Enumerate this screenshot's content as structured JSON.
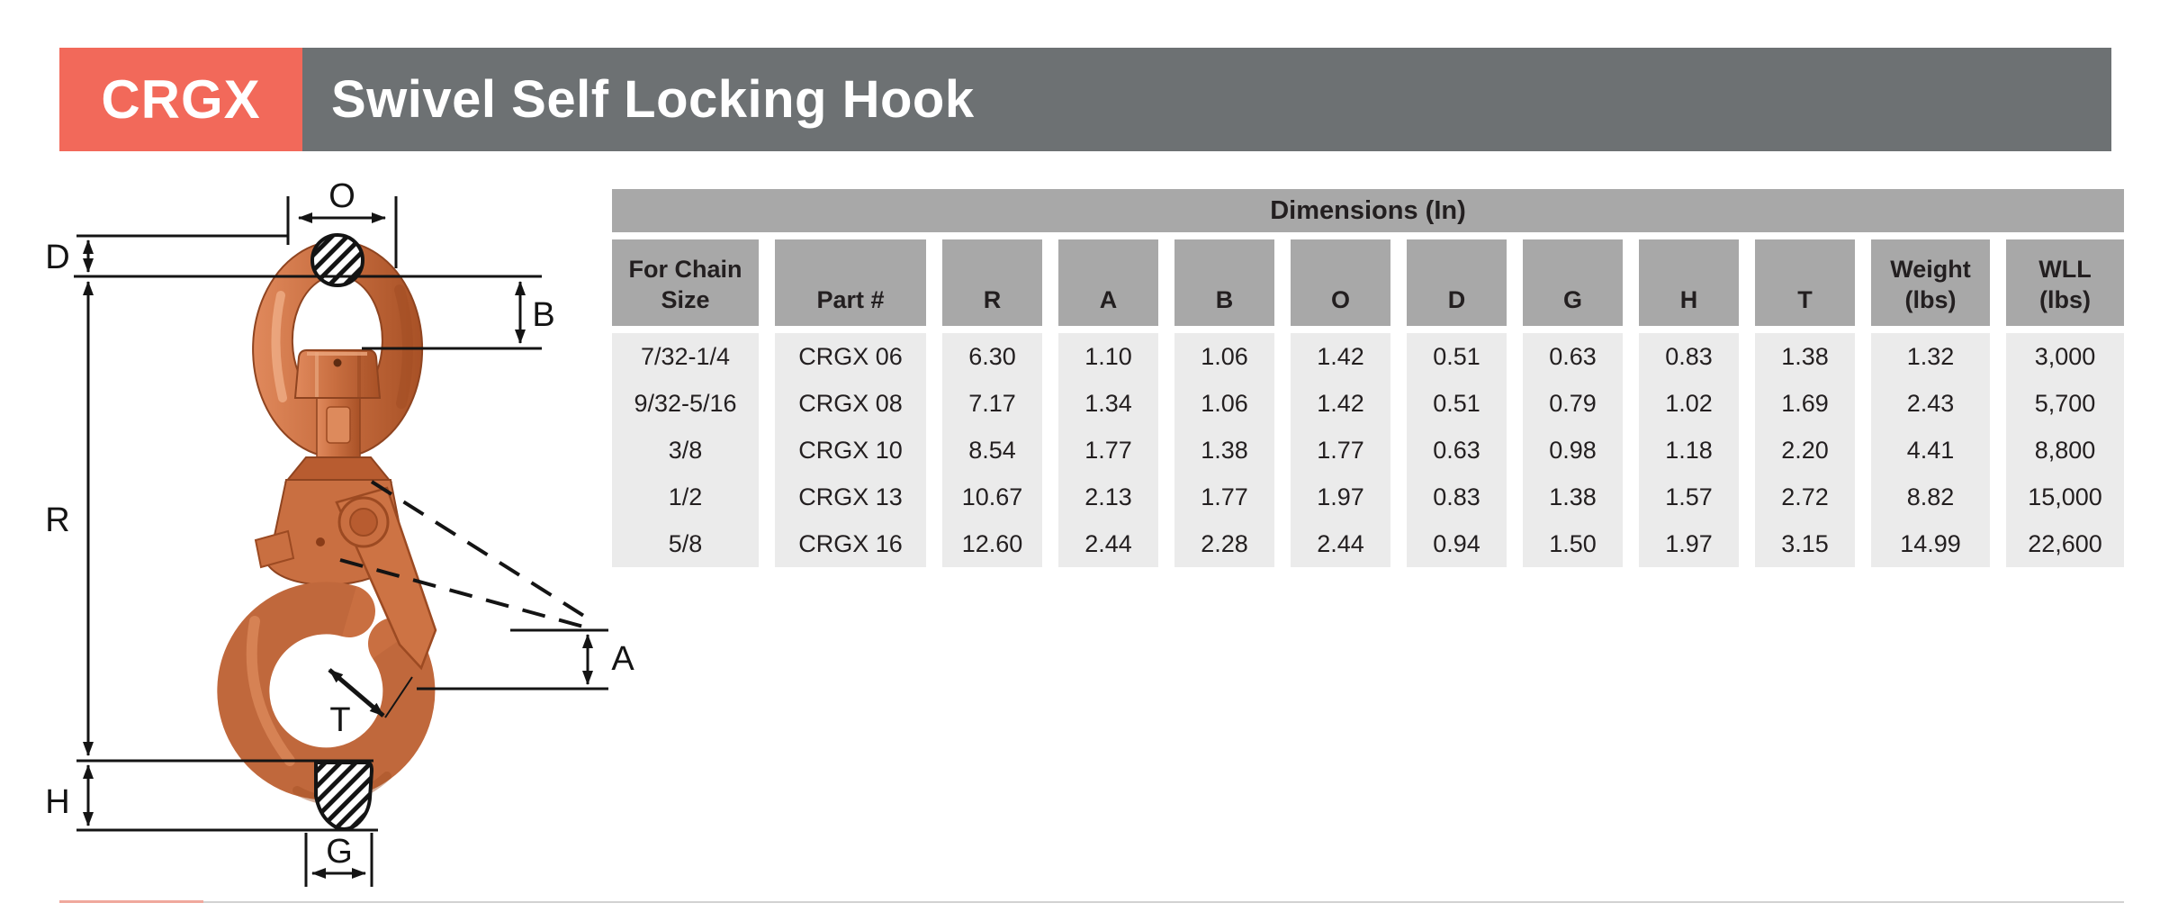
{
  "header": {
    "product_code": "CRGX",
    "title": "Swivel Self Locking Hook"
  },
  "diagram": {
    "labels": {
      "O": "O",
      "D": "D",
      "B": "B",
      "R": "R",
      "T": "T",
      "A": "A",
      "H": "H",
      "G": "G"
    },
    "description": "swivel-self-locking-hook-dimension-drawing"
  },
  "table": {
    "title": "Dimensions (In)",
    "columns": [
      "For Chain\nSize",
      "Part #",
      "R",
      "A",
      "B",
      "O",
      "D",
      "G",
      "H",
      "T",
      "Weight\n(lbs)",
      "WLL\n(lbs)"
    ],
    "rows": [
      [
        "7/32-1/4",
        "CRGX 06",
        "6.30",
        "1.10",
        "1.06",
        "1.42",
        "0.51",
        "0.63",
        "0.83",
        "1.38",
        "1.32",
        "3,000"
      ],
      [
        "9/32-5/16",
        "CRGX 08",
        "7.17",
        "1.34",
        "1.06",
        "1.42",
        "0.51",
        "0.79",
        "1.02",
        "1.69",
        "2.43",
        "5,700"
      ],
      [
        "3/8",
        "CRGX 10",
        "8.54",
        "1.77",
        "1.38",
        "1.77",
        "0.63",
        "0.98",
        "1.18",
        "2.20",
        "4.41",
        "8,800"
      ],
      [
        "1/2",
        "CRGX 13",
        "10.67",
        "2.13",
        "1.77",
        "1.97",
        "0.83",
        "1.38",
        "1.57",
        "2.72",
        "8.82",
        "15,000"
      ],
      [
        "5/8",
        "CRGX 16",
        "12.60",
        "2.44",
        "2.28",
        "2.44",
        "0.94",
        "1.50",
        "1.97",
        "3.15",
        "14.99",
        "22,600"
      ]
    ]
  },
  "colors": {
    "accent": "#F2695A",
    "title_bar_gray": "#6D7173",
    "table_header_gray": "#A8A8A8",
    "table_row_gray": "#EBEBEB",
    "hook_orange": "#C96F41"
  }
}
